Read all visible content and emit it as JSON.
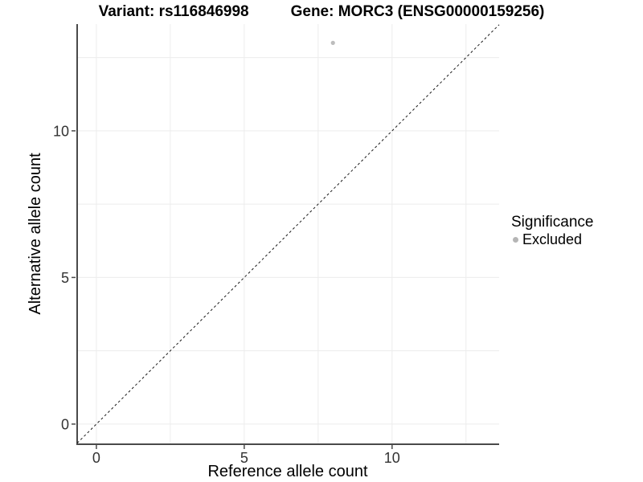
{
  "header": {
    "variant_title": "Variant: rs116846998",
    "gene_title": "Gene: MORC3 (ENSG00000159256)"
  },
  "axes": {
    "x_title": "Reference allele count",
    "y_title": "Alternative allele count"
  },
  "legend": {
    "title": "Significance",
    "items": [
      {
        "label": "Excluded",
        "color": "#b5b5b5"
      }
    ]
  },
  "chart_data": {
    "type": "scatter",
    "title": "Variant: rs116846998    Gene: MORC3 (ENSG00000159256)",
    "xlabel": "Reference allele count",
    "ylabel": "Alternative allele count",
    "xlim": [
      -0.65,
      13.62
    ],
    "ylim": [
      -0.66,
      13.64
    ],
    "x_ticks": [
      0,
      5,
      10
    ],
    "y_ticks": [
      0,
      5,
      10
    ],
    "gridline_values": [
      0,
      2.5,
      5,
      7.5,
      10,
      12.5
    ],
    "grid": true,
    "series": [
      {
        "name": "Excluded",
        "color": "#bdbdbd",
        "points": [
          {
            "x": 8,
            "y": 13
          }
        ]
      }
    ],
    "identity_line": {
      "slope": 1,
      "intercept": 0,
      "style": "dashed",
      "color": "#1a1a1a"
    },
    "legend_position": "right",
    "colors": {
      "gridline": "#ececec",
      "axis_line": "#4a4a4a",
      "tick_label": "#333333",
      "point": "#bdbdbd"
    }
  }
}
